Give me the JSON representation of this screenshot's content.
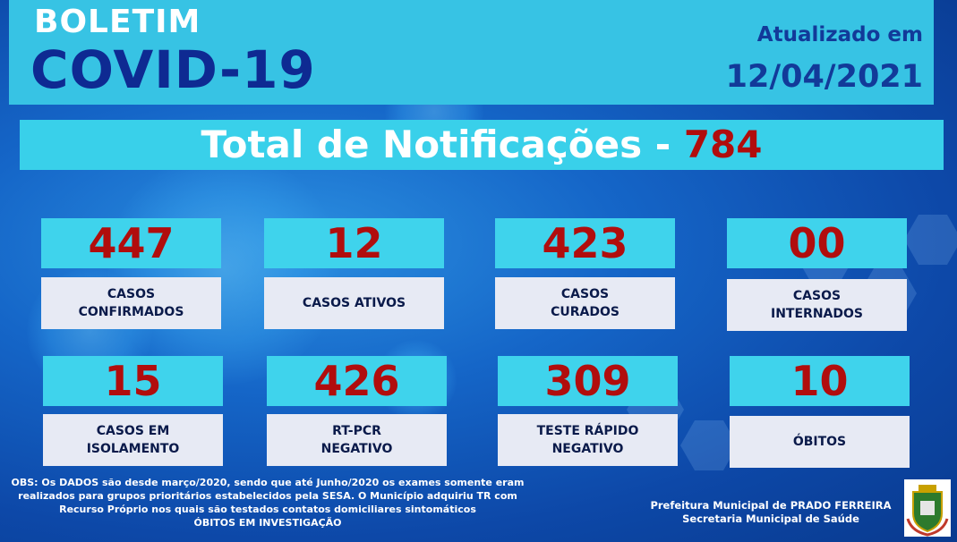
{
  "header": {
    "title_line1": "BOLETIM",
    "title_line2": "COVID-19",
    "updated_label": "Atualizado em",
    "updated_date": "12/04/2021"
  },
  "total": {
    "label": "Total de Notificações - ",
    "value": "784"
  },
  "cards": [
    {
      "value": "447",
      "label_lines": [
        "CASOS",
        "CONFIRMADOS"
      ]
    },
    {
      "value": "12",
      "label_lines": [
        "CASOS ATIVOS"
      ]
    },
    {
      "value": "423",
      "label_lines": [
        "CASOS",
        "CURADOS"
      ]
    },
    {
      "value": "00",
      "label_lines": [
        "CASOS",
        "INTERNADOS"
      ]
    },
    {
      "value": "15",
      "label_lines": [
        "CASOS EM",
        "ISOLAMENTO"
      ]
    },
    {
      "value": "426",
      "label_lines": [
        "RT-PCR",
        "NEGATIVO"
      ]
    },
    {
      "value": "309",
      "label_lines": [
        "TESTE RÁPIDO",
        "NEGATIVO"
      ]
    },
    {
      "value": "10",
      "label_lines": [
        "ÓBITOS"
      ]
    }
  ],
  "obs": [
    "OBS: Os DADOS são desde março/2020, sendo que até Junho/2020 os exames somente eram",
    "realizados para grupos prioritários estabelecidos pela SESA. O Município adquiriu TR com",
    "Recurso Próprio nos quais são testados contatos domiciliares sintomáticos",
    "ÓBITOS EM INVESTIGAÇÃO"
  ],
  "footer": {
    "line1": "Prefeitura Municipal de PRADO FERREIRA",
    "line2": "Secretaria Municipal de Saúde"
  },
  "icons": [
    "virus-background",
    "municipal-crest-icon"
  ],
  "colors": {
    "header_bg": "#37c3e4",
    "title_dark_blue": "#0e2a92",
    "highlight_red": "#b10d0d",
    "number_box": "#3fd3ec",
    "label_box": "#e7eaf4"
  }
}
